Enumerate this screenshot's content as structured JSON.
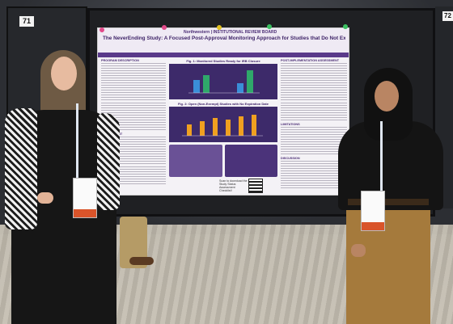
{
  "board": {
    "number_left": "71",
    "number_right": "72"
  },
  "poster": {
    "institution": "Northwestern | INSTITUTIONAL REVIEW BOARD",
    "title": "The NeverEnding Study: A Focused Post-Approval Monitoring Approach for Studies that Do Not Expire",
    "sections": {
      "program_description": "PROGRAM DESCRIPTION",
      "assessment": "ASSESSMENT",
      "post_implementation": "POST-IMPLEMENTATION ASSESSMENT",
      "limitations": "LIMITATIONS",
      "discussion": "DISCUSSION"
    },
    "figures": {
      "fig1_title": "Fig. 1: Monitored Studies Ready for IRB Closure",
      "fig2_title": "Fig. 2: Open (Non-Exempt) Studies with No Expiration Date"
    },
    "qr_caption": "Scan to download the Study Status Assessment Checklist!"
  },
  "colors": {
    "poster_accent": "#4a2c74",
    "figure_bg": "#3d2a6a",
    "bar_blue": "#3a8fd8",
    "bar_green": "#2fa86a",
    "bar_orange": "#f0a020"
  }
}
